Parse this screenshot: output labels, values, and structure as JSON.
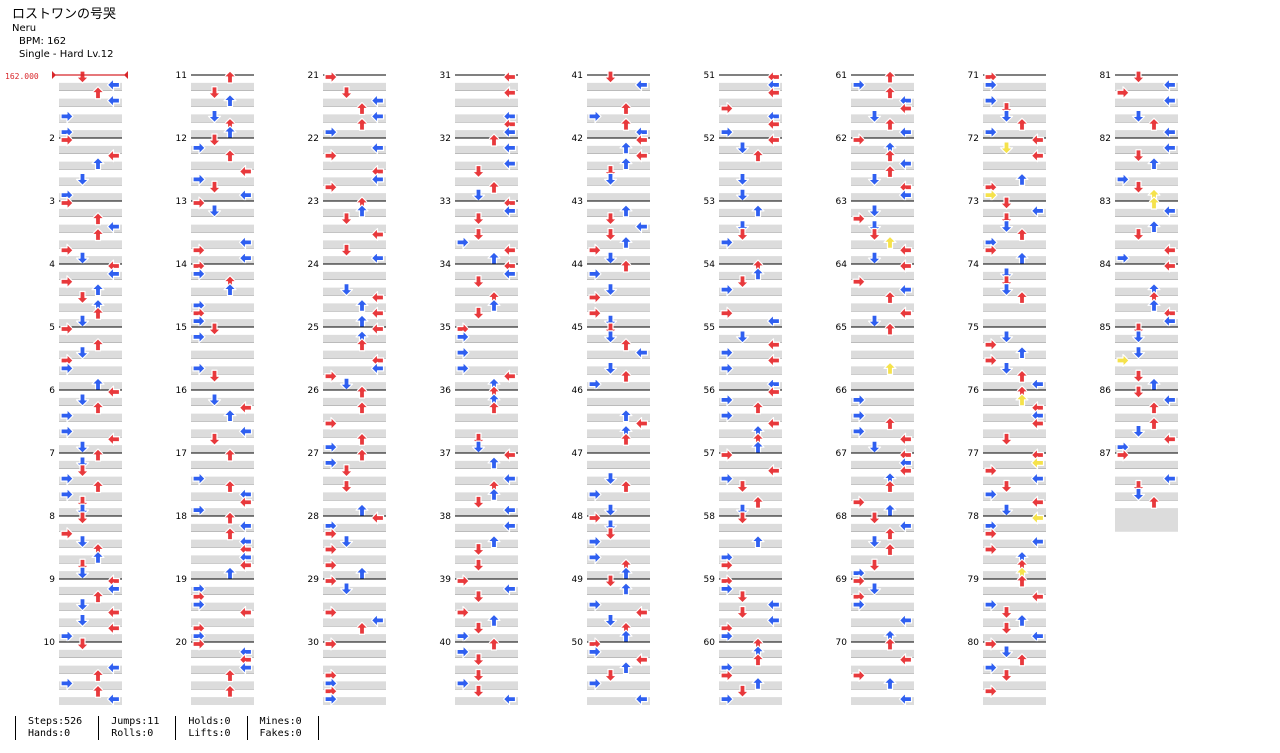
{
  "song": {
    "title": "ロストワンの号哭",
    "artist": "Neru",
    "bpm_label": "BPM: 162",
    "chart_label": "Single - Hard  Lv.12"
  },
  "bpm_marker": "162.000",
  "measure_numbers": [
    "2",
    "3",
    "4",
    "5",
    "6",
    "7",
    "8",
    "9",
    "10",
    "11",
    "12",
    "13",
    "14",
    "15",
    "16",
    "17",
    "18",
    "19",
    "20",
    "21",
    "22",
    "23",
    "24",
    "25",
    "26",
    "27",
    "28",
    "29",
    "30",
    "31",
    "32",
    "33",
    "34",
    "35",
    "36",
    "37",
    "38",
    "39",
    "40",
    "41",
    "42",
    "43",
    "44",
    "45",
    "46",
    "47",
    "48",
    "49",
    "50",
    "51",
    "52",
    "53",
    "54",
    "55",
    "56",
    "57",
    "58",
    "59",
    "60",
    "61",
    "62",
    "63",
    "64",
    "65",
    "66",
    "67",
    "68",
    "69",
    "70",
    "71",
    "72",
    "73",
    "74",
    "75",
    "76",
    "77",
    "78",
    "79",
    "80",
    "81",
    "82",
    "83",
    "84",
    "85",
    "86",
    "87"
  ],
  "colors": {
    "red_arrow": "#e8393c",
    "blue_arrow": "#2f5ff0",
    "yellow_arrow": "#f5e24b",
    "stripe": "#dcdcdc",
    "bpm": "#d8262a"
  },
  "stats": {
    "steps": "Steps:526",
    "hands": "Hands:0",
    "jumps": "Jumps:11",
    "rolls": "Rolls:0",
    "holds": "Holds:0",
    "lifts": "Lifts:0",
    "mines": "Mines:0",
    "fakes": "Fakes:0"
  }
}
